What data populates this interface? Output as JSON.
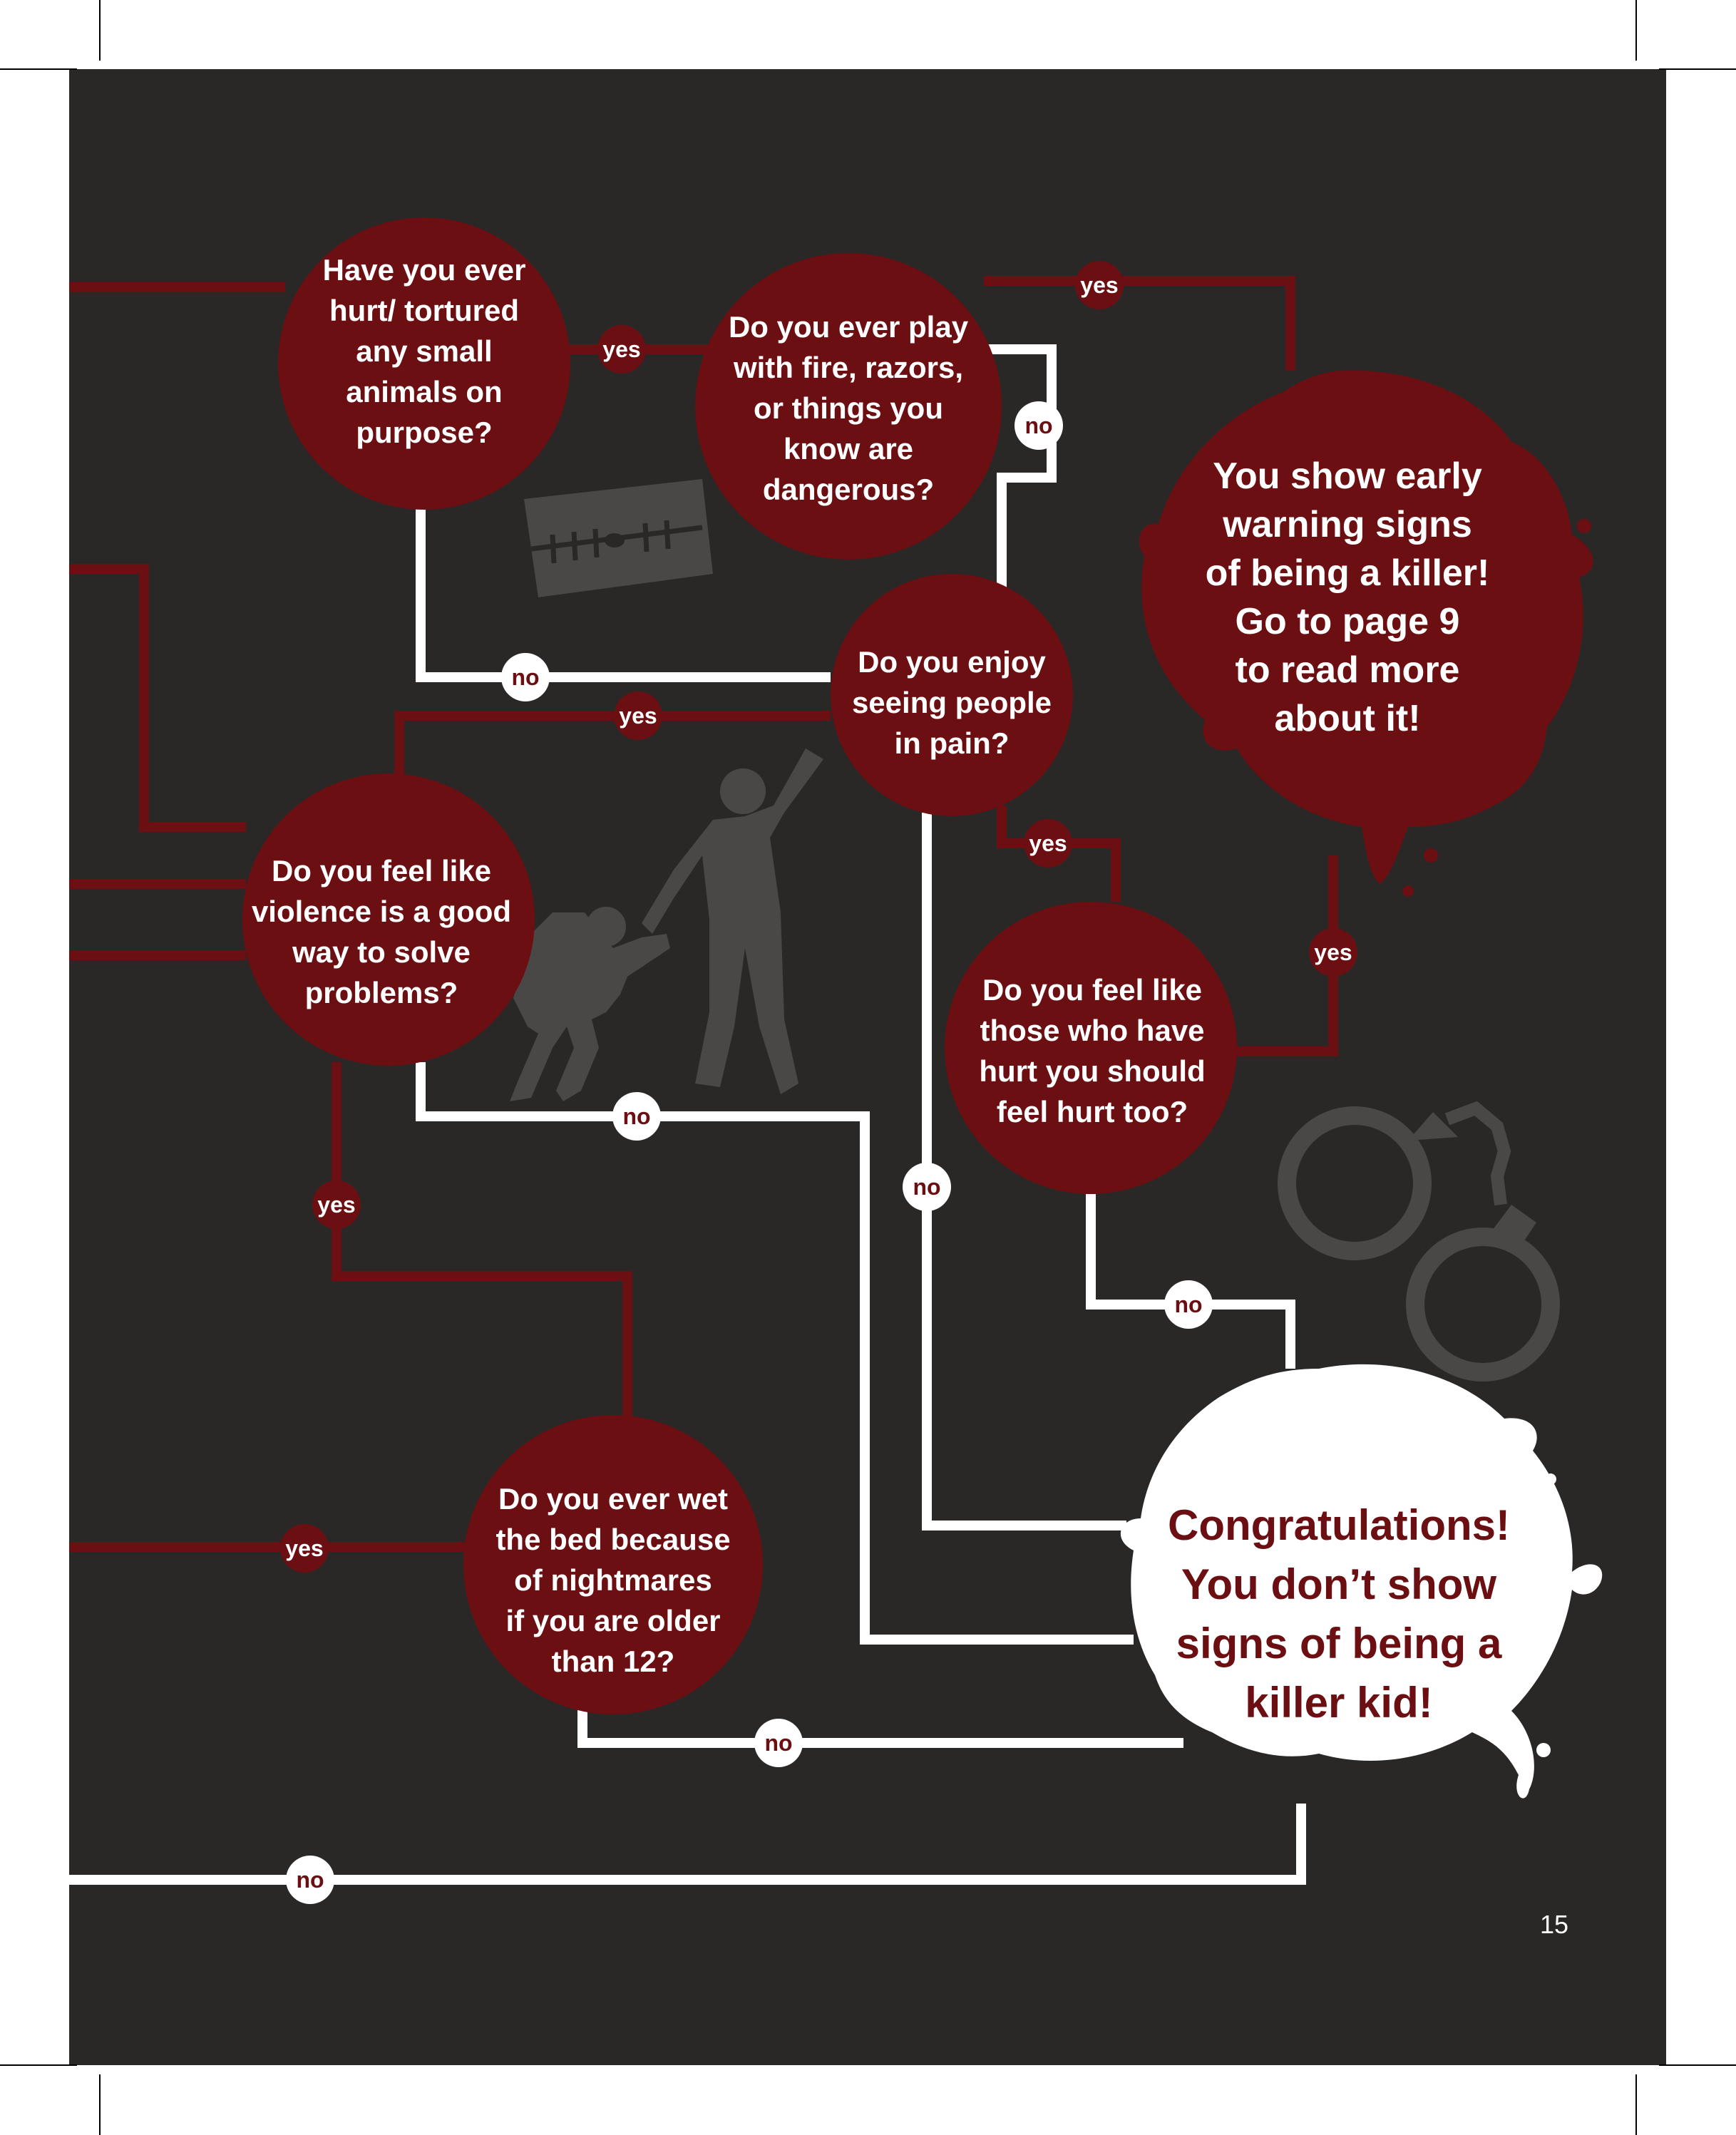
{
  "colors": {
    "background": "#2a2727",
    "page": "#ffffff",
    "dark_red": "#6b0f12",
    "line_red": "#6b0f12",
    "line_white": "#ffffff",
    "silhouette": "#4a4747",
    "badge_white_text": "#6b0f12",
    "congrats_text": "#6b0f12"
  },
  "questions": {
    "q1": [
      "Have you ever",
      "hurt/ tortured",
      "any small",
      "animals on",
      "purpose?"
    ],
    "q2": [
      "Do you ever play",
      "with fire, razors,",
      "or things you",
      "know are",
      "dangerous?"
    ],
    "q3": [
      "Do you enjoy",
      "seeing people",
      "in pain?"
    ],
    "q4": [
      "Do you feel like",
      "violence is a good",
      "way to solve",
      "problems?"
    ],
    "q5": [
      "Do you feel like",
      "those who have",
      "hurt you should",
      "feel hurt too?"
    ],
    "q6": [
      "Do you ever wet",
      "the bed because",
      "of nightmares",
      "if you are older",
      "than 12?"
    ]
  },
  "results": {
    "killer": [
      "You show early",
      "warning signs",
      "of being a killer!",
      "Go to page 9",
      "to read more",
      "about it!"
    ],
    "safe": [
      "Congratulations!",
      "You don’t show",
      "signs of being a",
      "killer kid!"
    ]
  },
  "labels": {
    "yes": "yes",
    "no": "no"
  },
  "icons": [
    "razor-blade-icon",
    "violence-silhouette-icon",
    "handcuffs-icon"
  ],
  "page_number": "15"
}
